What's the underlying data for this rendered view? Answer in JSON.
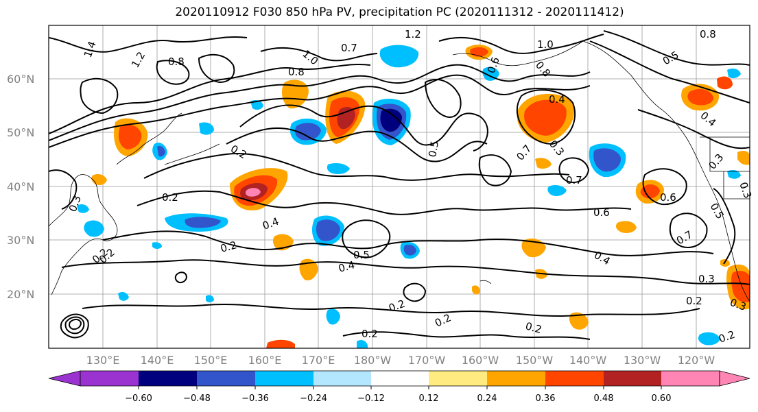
{
  "title": "2020110912 F030 850 hPa PV, precipitation PC (2020111312 - 2020111412)",
  "lat_labels": [
    "60°N",
    "50°N",
    "40°N",
    "30°N",
    "20°N"
  ],
  "lon_labels": [
    "130°E",
    "140°E",
    "150°E",
    "160°E",
    "170°E",
    "180°W",
    "170°W",
    "160°W",
    "150°W",
    "140°W",
    "130°W",
    "120°W"
  ],
  "colorbar": {
    "colors": [
      "#9a33d0",
      "#00007f",
      "#3355cc",
      "#00bfff",
      "#b3e6ff",
      "#ffffff",
      "#ffeb80",
      "#ffa500",
      "#ff4500",
      "#b22222",
      "#ff85b4"
    ],
    "tick_labels": [
      "−0.60",
      "−0.48",
      "−0.36",
      "−0.24",
      "−0.12",
      "0.12",
      "0.24",
      "0.36",
      "0.48",
      "0.60"
    ]
  },
  "contour_labels": [
    "1.4",
    "1.2",
    "0.8",
    "0.8",
    "1.0",
    "0.7",
    "1.2",
    "1.0",
    "0.8",
    "0.6",
    "0.5",
    "0.8",
    "0.4",
    "0.5",
    "0.2",
    "0.3",
    "0.2",
    "0.4",
    "0.2",
    "0.2",
    "0.5",
    "0.4",
    "0.2",
    "0.2",
    "0.2",
    "0.2",
    "0.7",
    "0.3",
    "0.4",
    "0.7",
    "0.6",
    "0.6",
    "0.4",
    "0.7",
    "0.5",
    "0.3",
    "0.2",
    "0.3",
    "0.3",
    "0.3",
    "0.2",
    "0.2"
  ]
}
